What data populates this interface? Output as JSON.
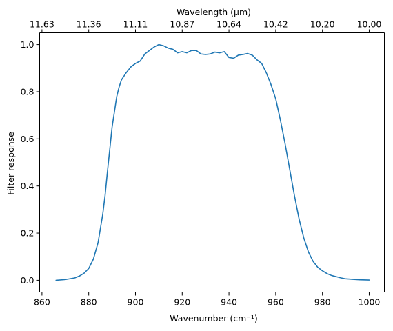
{
  "chart_data": {
    "type": "line",
    "title": "",
    "xlabel": "Wavenumber (cm⁻¹)",
    "ylabel": "Filter response",
    "top_xlabel": "Wavelength (μm)",
    "xlim": [
      859,
      1006.5
    ],
    "ylim": [
      -0.05,
      1.05
    ],
    "grid": false,
    "x_ticks": [
      860,
      880,
      900,
      920,
      940,
      960,
      980,
      1000
    ],
    "y_ticks": [
      0.0,
      0.2,
      0.4,
      0.6,
      0.8,
      1.0
    ],
    "y_tick_labels": [
      "0.0",
      "0.2",
      "0.4",
      "0.6",
      "0.8",
      "1.0"
    ],
    "top_ticks": [
      {
        "value": 860,
        "label": "11.63"
      },
      {
        "value": 880,
        "label": "11.36"
      },
      {
        "value": 900,
        "label": "11.11"
      },
      {
        "value": 920,
        "label": "10.87"
      },
      {
        "value": 940,
        "label": "10.64"
      },
      {
        "value": 960,
        "label": "10.42"
      },
      {
        "value": 980,
        "label": "10.20"
      },
      {
        "value": 1000,
        "label": "10.00"
      }
    ],
    "series": [
      {
        "color": "#1f77b4",
        "x": [
          866,
          870,
          874,
          876,
          878,
          880,
          882,
          884,
          886,
          887,
          888,
          890,
          892,
          893,
          894,
          896,
          898,
          900,
          902,
          904,
          906,
          908,
          910,
          912,
          914,
          916,
          918,
          920,
          922,
          924,
          926,
          928,
          930,
          932,
          934,
          936,
          938,
          940,
          942,
          944,
          946,
          948,
          950,
          952,
          954,
          956,
          958,
          960,
          962,
          964,
          966,
          968,
          970,
          972,
          974,
          976,
          978,
          980,
          982,
          984,
          986,
          988,
          990,
          993,
          996,
          1000
        ],
        "y": [
          0.0,
          0.003,
          0.01,
          0.018,
          0.03,
          0.05,
          0.09,
          0.16,
          0.28,
          0.36,
          0.46,
          0.65,
          0.78,
          0.82,
          0.85,
          0.88,
          0.905,
          0.92,
          0.93,
          0.96,
          0.975,
          0.99,
          1.0,
          0.995,
          0.985,
          0.98,
          0.965,
          0.97,
          0.965,
          0.975,
          0.975,
          0.96,
          0.958,
          0.96,
          0.968,
          0.965,
          0.97,
          0.945,
          0.942,
          0.955,
          0.958,
          0.962,
          0.955,
          0.935,
          0.92,
          0.88,
          0.83,
          0.77,
          0.68,
          0.58,
          0.47,
          0.36,
          0.26,
          0.18,
          0.12,
          0.08,
          0.055,
          0.04,
          0.028,
          0.02,
          0.015,
          0.01,
          0.006,
          0.004,
          0.002,
          0.001
        ]
      }
    ]
  }
}
